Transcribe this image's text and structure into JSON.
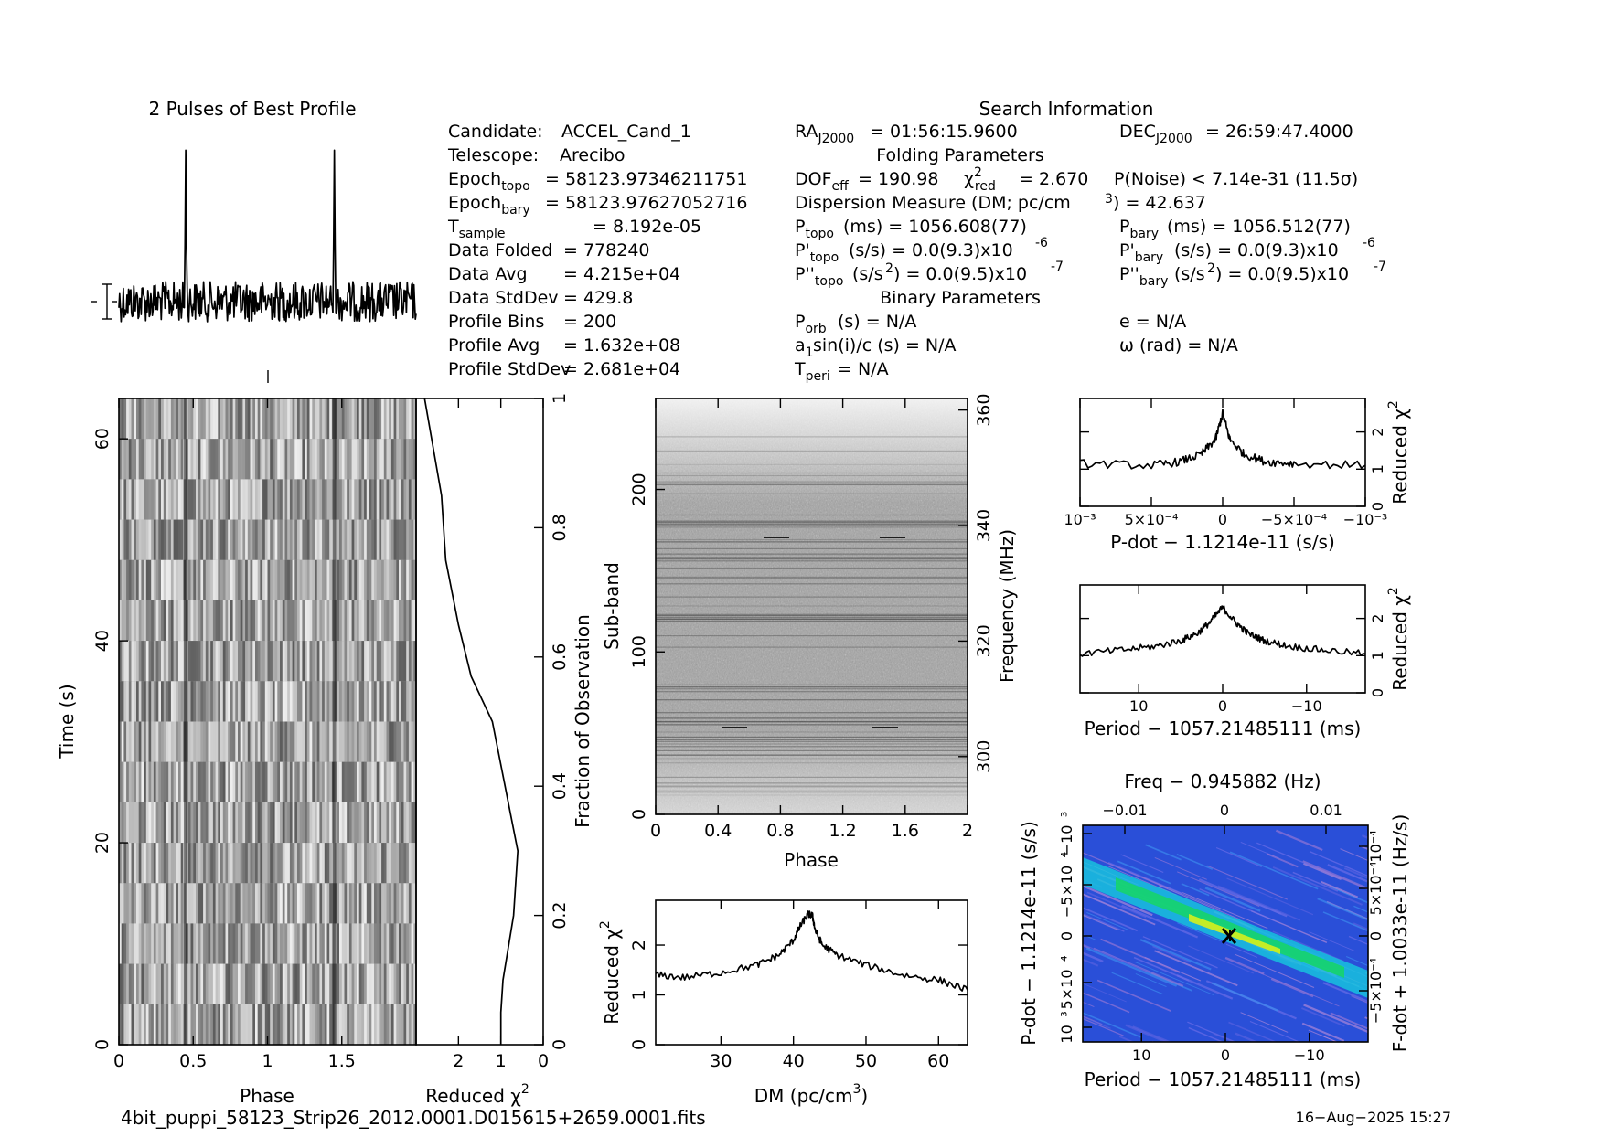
{
  "profile_title": "2 Pulses of Best Profile",
  "search_info_title": "Search Information",
  "info_left": [
    {
      "k": "Candidate:",
      "v": "ACCEL_Cand_1"
    },
    {
      "k": "Telescope:",
      "v": "Arecibo"
    },
    {
      "k": "Epoch",
      "s": "topo",
      "v": "= 58123.97346211751"
    },
    {
      "k": "Epoch",
      "s": "bary",
      "v": "= 58123.97627052716"
    },
    {
      "k": "T",
      "s": "sample",
      "v": "=   8.192e-05"
    },
    {
      "k": "Data Folded",
      "v": "=   778240"
    },
    {
      "k": "Data Avg",
      "v": "=   4.215e+04"
    },
    {
      "k": "Data StdDev",
      "v": "=   429.8"
    },
    {
      "k": "Profile Bins",
      "v": "=   200"
    },
    {
      "k": "Profile Avg",
      "v": "=   1.632e+08"
    },
    {
      "k": "Profile StdDev",
      "v": "=   2.681e+04"
    }
  ],
  "info_mid": {
    "ra": "= 01:56:15.9600",
    "dec": "= 26:59:47.4000",
    "folding_title": "Folding Parameters",
    "dof": "= 190.98",
    "chi2": "= 2.670",
    "pnoise": "P(Noise) < 7.14e-31   (11.5σ)",
    "dm_line_a": "Dispersion Measure (DM; pc/cm",
    "dm_line_b": ") = 42.637",
    "ptopo": "(ms) =  1056.608(77)",
    "pbary": "(ms) =  1056.512(77)",
    "pdtopo": "(s/s) = 0.0(9.3)x10",
    "pdbary": "(s/s) = 0.0(9.3)x10",
    "pdexp": "-6",
    "pddtopo": "(s/s",
    "pddtail": ") = 0.0(9.5)x10",
    "pddexp": "-7",
    "binary_title": "Binary Parameters",
    "porb": "(s) = N/A",
    "e": "e = N/A",
    "asini": "sin(i)/c (s) = N/A",
    "omega": "ω (rad) = N/A",
    "tperi": "= N/A"
  },
  "chart_data": [
    {
      "type": "line",
      "name": "best-profile",
      "x": [
        0,
        2
      ],
      "title": "2 Pulses of Best Profile",
      "pulse_phases": [
        0.45,
        1.45
      ],
      "peak_relative_height": 0.92
    },
    {
      "type": "heatmap",
      "name": "time-vs-phase",
      "xlabel": "Phase",
      "ylabel": "Time (s)",
      "xlim": [
        0,
        2
      ],
      "ylim": [
        0,
        64
      ],
      "xticks": [
        "0",
        "0.5",
        "1",
        "1.5"
      ],
      "yticks": [
        "0",
        "20",
        "40",
        "60"
      ],
      "n_time_intervals": 16,
      "colormap": "grayscale"
    },
    {
      "type": "line",
      "name": "chi2-vs-fraction",
      "xlabel": "Reduced χ²",
      "ylabel_right": "Fraction of Observation",
      "xticks": [
        "2",
        "1",
        "0"
      ],
      "yticks": [
        "0",
        "0.2",
        "0.4",
        "0.6",
        "0.8",
        "1"
      ],
      "xlim": [
        3.0,
        0
      ],
      "ylim": [
        0,
        1
      ],
      "x": [
        1.0,
        1.0,
        0.95,
        0.7,
        0.6,
        0.9,
        1.2,
        1.7,
        2.0,
        2.3,
        2.4,
        2.8
      ],
      "y": [
        0.0,
        0.05,
        0.1,
        0.2,
        0.3,
        0.4,
        0.5,
        0.57,
        0.65,
        0.75,
        0.85,
        1.0
      ]
    },
    {
      "type": "heatmap",
      "name": "subband-vs-phase",
      "xlabel": "Phase",
      "ylabel": "Sub-band",
      "ylabel_right": "Frequency (MHz)",
      "xlim": [
        0,
        2
      ],
      "ylim": [
        0,
        256
      ],
      "xticks": [
        "0",
        "0.4",
        "0.8",
        "1.2",
        "1.6",
        "2"
      ],
      "yticks": [
        "0",
        "100",
        "200"
      ],
      "freq_ticks": [
        "300",
        "320",
        "340",
        "360"
      ],
      "colormap": "grayscale"
    },
    {
      "type": "line",
      "name": "chi2-vs-dm",
      "xlabel": "DM (pc/cm³)",
      "ylabel": "Reduced χ²",
      "xlim": [
        21,
        64
      ],
      "ylim": [
        0,
        2.9
      ],
      "xticks": [
        "30",
        "40",
        "50",
        "60"
      ],
      "yticks": [
        "0",
        "1",
        "2"
      ],
      "x": [
        21,
        25,
        30,
        35,
        38,
        40,
        41,
        42,
        42.6,
        43,
        44,
        46,
        50,
        55,
        60,
        64
      ],
      "y": [
        1.4,
        1.35,
        1.45,
        1.6,
        1.8,
        2.1,
        2.4,
        2.62,
        2.6,
        2.3,
        2.0,
        1.8,
        1.6,
        1.4,
        1.3,
        1.1
      ]
    },
    {
      "type": "line",
      "name": "chi2-vs-pdot",
      "xlabel": "P-dot − 1.1214e-11 (s/s)",
      "ylabel_right": "Reduced χ²",
      "xlim": [
        0.001,
        -0.001
      ],
      "ylim": [
        0,
        2.9
      ],
      "xticks": [
        "10⁻³",
        "5×10⁻⁴",
        "0",
        "−5×10⁻⁴",
        "−10⁻³"
      ],
      "yticks": [
        "0",
        "1",
        "2"
      ],
      "x": [
        0.001,
        0.0005,
        0.0003,
        0.00015,
        5e-05,
        0,
        -5e-05,
        -0.00015,
        -0.0003,
        -0.0005,
        -0.001
      ],
      "y": [
        1.15,
        1.1,
        1.2,
        1.4,
        1.8,
        2.5,
        1.8,
        1.4,
        1.2,
        1.15,
        1.1
      ]
    },
    {
      "type": "line",
      "name": "chi2-vs-period",
      "xlabel": "Period − 1057.21485111 (ms)",
      "ylabel_right": "Reduced χ²",
      "xlim": [
        17,
        -17
      ],
      "ylim": [
        0,
        2.9
      ],
      "xticks": [
        "10",
        "0",
        "−10"
      ],
      "yticks": [
        "0",
        "1",
        "2"
      ],
      "x": [
        17,
        12,
        8,
        5,
        3,
        1.5,
        0,
        -1.5,
        -3,
        -5,
        -8,
        -12,
        -17
      ],
      "y": [
        1.05,
        1.15,
        1.25,
        1.4,
        1.6,
        1.9,
        2.3,
        1.9,
        1.6,
        1.4,
        1.25,
        1.15,
        1.05
      ]
    },
    {
      "type": "heatmap",
      "name": "period-pdot-plane",
      "title": "Freq − 0.945882 (Hz)",
      "xlabel": "Period − 1057.21485111 (ms)",
      "ylabel": "P-dot − 1.1214e-11 (s/s)",
      "ylabel_right": "F-dot + 1.0033e-11 (Hz/s)",
      "xlim": [
        17,
        -17
      ],
      "xticks": [
        "10",
        "0",
        "−10"
      ],
      "top_ticks": [
        "−0.01",
        "0",
        "0.01"
      ],
      "yticks": [
        "10⁻³",
        "5×10⁻⁴",
        "0",
        "−5×10⁻⁴",
        "−10⁻³"
      ],
      "right_ticks": [
        "10⁻⁴",
        "5×10⁻⁴",
        "0",
        "−5×10⁻⁴"
      ],
      "colormap": "rainbow"
    }
  ],
  "filename": "4bit_puppi_58123_Strip26_2012.0001.D015615+2659.0001.fits",
  "timestamp": "16−Aug−2025 15:27"
}
